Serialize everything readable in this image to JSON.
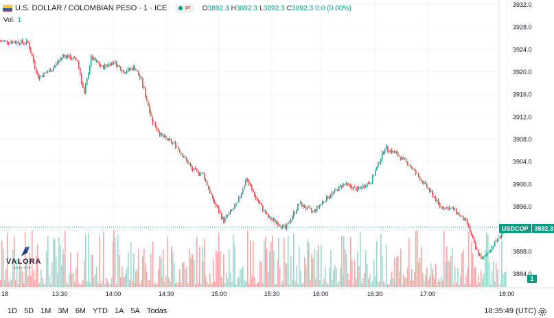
{
  "legend": {
    "symbol": "U.S. DOLLAR / COLOMBIAN PESO · 1 · ICE",
    "open_label": "O",
    "open": "3892.3",
    "high_label": "H",
    "high": "3892.3",
    "low_label": "L",
    "low": "3892.3",
    "close_label": "C",
    "close": "3892.3",
    "change": "0.0 (0.00%)",
    "icons": [
      "us-flag-icon",
      "market-status-dot",
      "swap-icon"
    ]
  },
  "volume": {
    "label": "Vol.",
    "value": "1"
  },
  "logo": {
    "name": "VALORA",
    "sub": "ANALITIK"
  },
  "price_tag": {
    "symbol": "USDCOP",
    "value": "3892.3"
  },
  "volume_tag": "1",
  "timeframes": [
    "1D",
    "5D",
    "1M",
    "3M",
    "6M",
    "YTD",
    "1A",
    "5A",
    "Todas"
  ],
  "clock": "18:35:49 (UTC)",
  "colors": {
    "up": "#26a69a",
    "down": "#ef5350",
    "last_price": "#089981",
    "grid": "#f0f3fa"
  },
  "chart_data": {
    "type": "candlestick",
    "y_ticks": [
      "3932.0",
      "3928.0",
      "3924.0",
      "3920.0",
      "3916.0",
      "3912.0",
      "3908.0",
      "3904.0",
      "3900.0",
      "3896.0",
      "3892.0",
      "3888.0",
      "3884.0"
    ],
    "x_ticks": [
      "18",
      "13:30",
      "14:00",
      "14:30",
      "15:00",
      "15:30",
      "16:00",
      "16:30",
      "17:00",
      "18:00"
    ],
    "ylim": [
      3881.5,
      3932.8
    ],
    "grid": true,
    "last_price": 3892.3,
    "segments": [
      {
        "x0": 0,
        "x1": 40,
        "y0": 3925.5,
        "y1": 3925.2
      },
      {
        "x0": 40,
        "x1": 55,
        "y0": 3925.2,
        "y1": 3919.0
      },
      {
        "x0": 55,
        "x1": 75,
        "y0": 3919.0,
        "y1": 3920.5
      },
      {
        "x0": 75,
        "x1": 92,
        "y0": 3920.5,
        "y1": 3923.0
      },
      {
        "x0": 92,
        "x1": 112,
        "y0": 3923.0,
        "y1": 3922.0
      },
      {
        "x0": 112,
        "x1": 122,
        "y0": 3922.0,
        "y1": 3916.0
      },
      {
        "x0": 122,
        "x1": 132,
        "y0": 3916.0,
        "y1": 3922.5
      },
      {
        "x0": 132,
        "x1": 148,
        "y0": 3922.5,
        "y1": 3920.8
      },
      {
        "x0": 148,
        "x1": 165,
        "y0": 3920.8,
        "y1": 3921.8
      },
      {
        "x0": 165,
        "x1": 180,
        "y0": 3921.8,
        "y1": 3920.0
      },
      {
        "x0": 180,
        "x1": 195,
        "y0": 3920.0,
        "y1": 3920.8
      },
      {
        "x0": 195,
        "x1": 205,
        "y0": 3920.8,
        "y1": 3918.5
      },
      {
        "x0": 205,
        "x1": 222,
        "y0": 3918.5,
        "y1": 3911.0
      },
      {
        "x0": 222,
        "x1": 235,
        "y0": 3911.0,
        "y1": 3908.5
      },
      {
        "x0": 235,
        "x1": 255,
        "y0": 3908.5,
        "y1": 3907.0
      },
      {
        "x0": 255,
        "x1": 280,
        "y0": 3907.0,
        "y1": 3902.5
      },
      {
        "x0": 280,
        "x1": 295,
        "y0": 3902.5,
        "y1": 3901.8
      },
      {
        "x0": 295,
        "x1": 310,
        "y0": 3901.8,
        "y1": 3897.0
      },
      {
        "x0": 310,
        "x1": 325,
        "y0": 3897.0,
        "y1": 3893.5
      },
      {
        "x0": 325,
        "x1": 345,
        "y0": 3893.5,
        "y1": 3896.5
      },
      {
        "x0": 345,
        "x1": 358,
        "y0": 3896.5,
        "y1": 3901.0
      },
      {
        "x0": 358,
        "x1": 372,
        "y0": 3901.0,
        "y1": 3897.5
      },
      {
        "x0": 372,
        "x1": 390,
        "y0": 3897.5,
        "y1": 3894.0
      },
      {
        "x0": 390,
        "x1": 405,
        "y0": 3894.0,
        "y1": 3893.0
      },
      {
        "x0": 405,
        "x1": 415,
        "y0": 3893.0,
        "y1": 3892.0
      },
      {
        "x0": 415,
        "x1": 435,
        "y0": 3892.0,
        "y1": 3896.5
      },
      {
        "x0": 435,
        "x1": 455,
        "y0": 3896.5,
        "y1": 3895.0
      },
      {
        "x0": 455,
        "x1": 475,
        "y0": 3895.0,
        "y1": 3897.5
      },
      {
        "x0": 475,
        "x1": 500,
        "y0": 3897.5,
        "y1": 3900.0
      },
      {
        "x0": 500,
        "x1": 520,
        "y0": 3900.0,
        "y1": 3899.0
      },
      {
        "x0": 520,
        "x1": 540,
        "y0": 3899.0,
        "y1": 3900.5
      },
      {
        "x0": 540,
        "x1": 560,
        "y0": 3900.5,
        "y1": 3906.5
      },
      {
        "x0": 560,
        "x1": 575,
        "y0": 3906.5,
        "y1": 3905.5
      },
      {
        "x0": 575,
        "x1": 595,
        "y0": 3905.5,
        "y1": 3903.5
      },
      {
        "x0": 595,
        "x1": 630,
        "y0": 3903.5,
        "y1": 3898.0
      },
      {
        "x0": 630,
        "x1": 640,
        "y0": 3898.0,
        "y1": 3896.0
      },
      {
        "x0": 640,
        "x1": 660,
        "y0": 3896.0,
        "y1": 3895.5
      },
      {
        "x0": 660,
        "x1": 680,
        "y0": 3895.5,
        "y1": 3893.0
      },
      {
        "x0": 680,
        "x1": 692,
        "y0": 3893.0,
        "y1": 3888.5
      },
      {
        "x0": 692,
        "x1": 702,
        "y0": 3888.5,
        "y1": 3886.5
      },
      {
        "x0": 702,
        "x1": 720,
        "y0": 3886.5,
        "y1": 3889.5
      },
      {
        "x0": 720,
        "x1": 737,
        "y0": 3889.5,
        "y1": 3892.3
      }
    ]
  }
}
